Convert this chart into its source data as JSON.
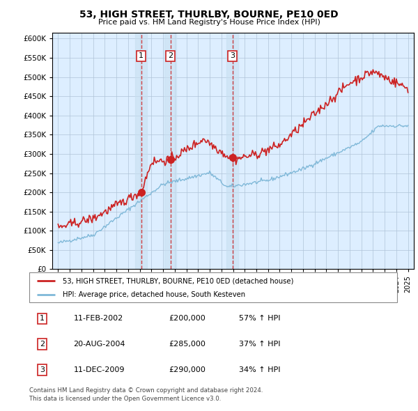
{
  "title": "53, HIGH STREET, THURLBY, BOURNE, PE10 0ED",
  "subtitle": "Price paid vs. HM Land Registry's House Price Index (HPI)",
  "legend_line1": "53, HIGH STREET, THURLBY, BOURNE, PE10 0ED (detached house)",
  "legend_line2": "HPI: Average price, detached house, South Kesteven",
  "footer1": "Contains HM Land Registry data © Crown copyright and database right 2024.",
  "footer2": "This data is licensed under the Open Government Licence v3.0.",
  "transactions": [
    {
      "num": 1,
      "date": "11-FEB-2002",
      "price": 200000,
      "pct": "57%",
      "dir": "↑"
    },
    {
      "num": 2,
      "date": "20-AUG-2004",
      "price": 285000,
      "pct": "37%",
      "dir": "↑"
    },
    {
      "num": 3,
      "date": "11-DEC-2009",
      "price": 290000,
      "pct": "34%",
      "dir": "↑"
    }
  ],
  "transaction_years": [
    2002.12,
    2004.64,
    2009.95
  ],
  "transaction_prices": [
    200000,
    285000,
    290000
  ],
  "hpi_color": "#7fb8d8",
  "price_color": "#cc2222",
  "vline_color": "#cc2222",
  "box_color": "#cc2222",
  "chart_bg": "#ddeeff",
  "ylim_max": 600000,
  "xlim_start": 1994.5,
  "xlim_end": 2025.5
}
